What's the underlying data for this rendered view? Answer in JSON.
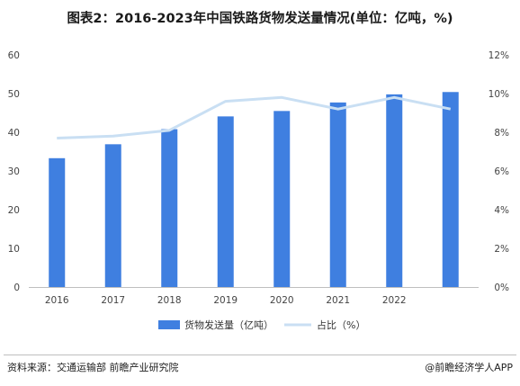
{
  "title": "图表2：2016-2023年中国铁路货物发送量情况(单位：亿吨，%)",
  "source": "资料来源：交通运输部 前瞻产业研究院",
  "brand": "@前瞻经济学人APP",
  "colors": {
    "bar": "#3f7fe0",
    "line": "#c9dff3"
  },
  "chart_data": {
    "type": "bar",
    "categories": [
      "2016",
      "2017",
      "2018",
      "2019",
      "2020",
      "2021",
      "2022",
      ""
    ],
    "series": [
      {
        "name": "货物发送量（亿吨）",
        "type": "bar",
        "axis": "left",
        "values": [
          33.3,
          36.9,
          40.8,
          44.1,
          45.5,
          47.7,
          49.8,
          50.4
        ]
      },
      {
        "name": "占比（%）",
        "type": "line",
        "axis": "right",
        "values": [
          7.7,
          7.8,
          8.1,
          9.6,
          9.8,
          9.2,
          9.8,
          9.2
        ]
      }
    ],
    "left_axis": {
      "min": 0,
      "max": 60,
      "ticks": [
        "0",
        "10",
        "20",
        "30",
        "40",
        "50",
        "60"
      ]
    },
    "right_axis": {
      "min": 0,
      "max": 12,
      "ticks": [
        "0%",
        "2%",
        "4%",
        "6%",
        "8%",
        "10%",
        "12%"
      ]
    },
    "legend_position": "bottom-center",
    "grid": false
  }
}
